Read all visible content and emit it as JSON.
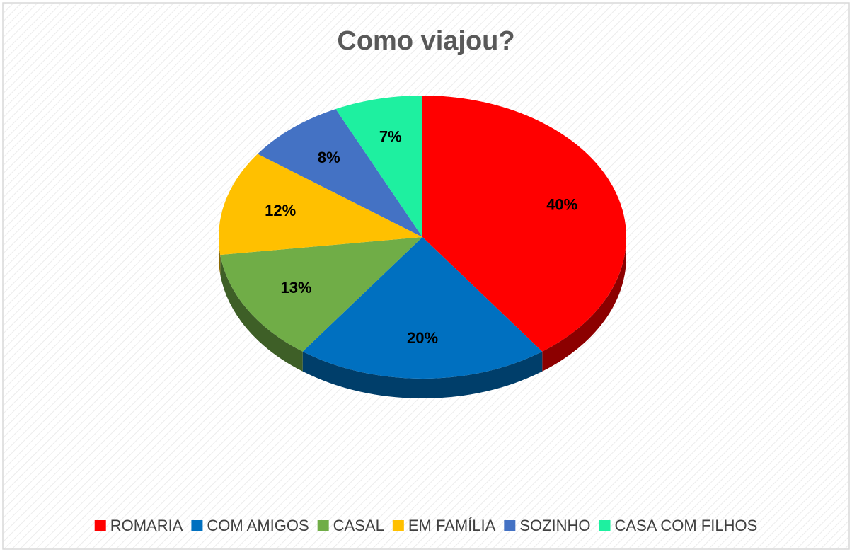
{
  "chart_data": {
    "type": "pie",
    "title": "Como viajou?",
    "categories": [
      "ROMARIA",
      "COM AMIGOS",
      "CASAL",
      "EM FAMÍLIA",
      "SOZINHO",
      "CASA COM FILHOS"
    ],
    "values": [
      40,
      20,
      13,
      12,
      8,
      7
    ],
    "value_labels": [
      "40%",
      "20%",
      "13%",
      "12%",
      "8%",
      "7%"
    ],
    "colors": [
      "#ff0000",
      "#0070c0",
      "#70ad47",
      "#ffc000",
      "#4472c4",
      "#1ef0a0"
    ],
    "legend": "bottom"
  }
}
